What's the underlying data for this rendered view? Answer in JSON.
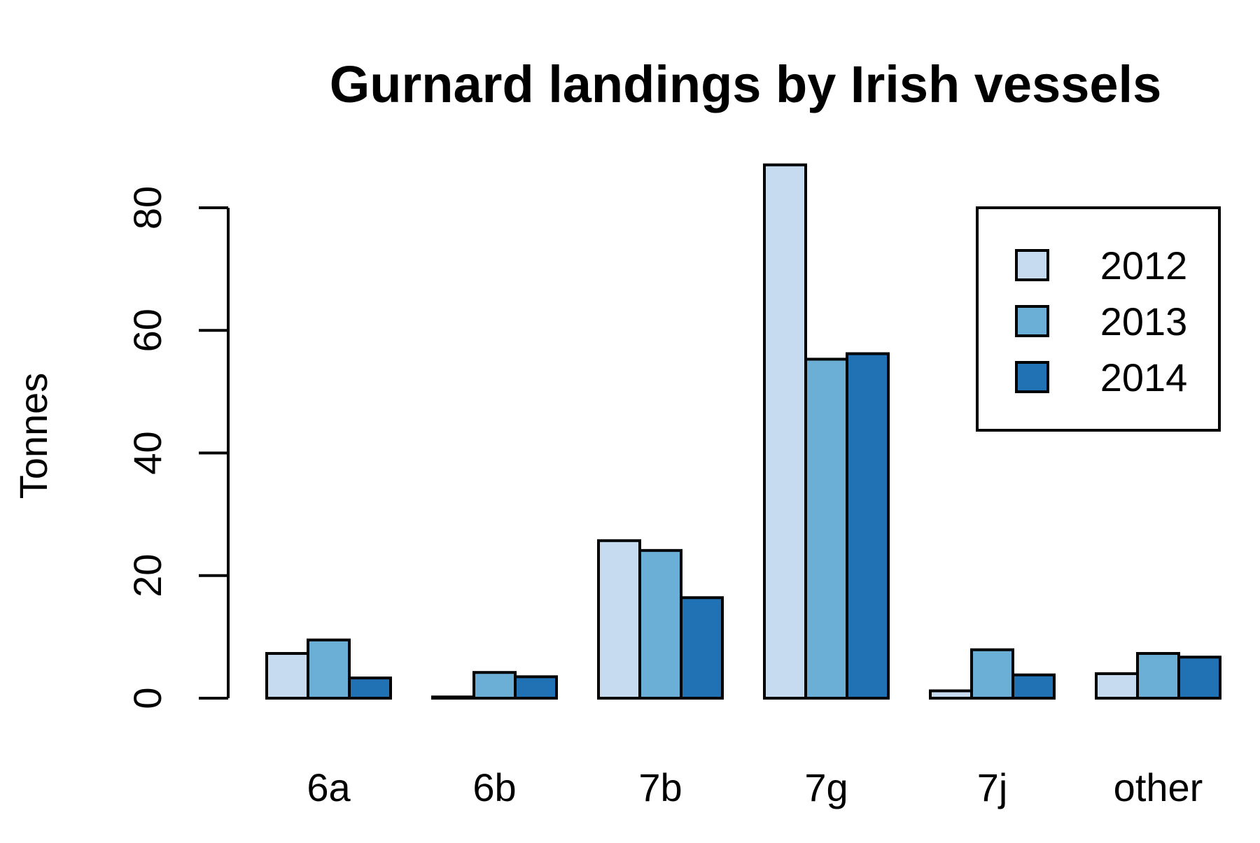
{
  "chart_data": {
    "type": "bar",
    "title": "Gurnard landings by Irish vessels",
    "ylabel": "Tonnes",
    "xlabel": "",
    "categories": [
      "6a",
      "6b",
      "7b",
      "7g",
      "7j",
      "other"
    ],
    "series": [
      {
        "name": "2012",
        "color": "#c6dbef",
        "values": [
          7.3,
          0.2,
          25.7,
          87.0,
          1.2,
          4.0
        ]
      },
      {
        "name": "2013",
        "color": "#6baed6",
        "values": [
          9.5,
          4.2,
          24.1,
          55.3,
          7.9,
          7.3
        ]
      },
      {
        "name": "2014",
        "color": "#2171b5",
        "values": [
          3.3,
          3.5,
          16.4,
          56.2,
          3.8,
          6.7
        ]
      }
    ],
    "ylim": [
      0,
      80
    ],
    "yticks": [
      "0",
      "20",
      "40",
      "60",
      "80"
    ],
    "grid": false,
    "legend_position": "top-right",
    "bar_border_color": "#000000"
  }
}
